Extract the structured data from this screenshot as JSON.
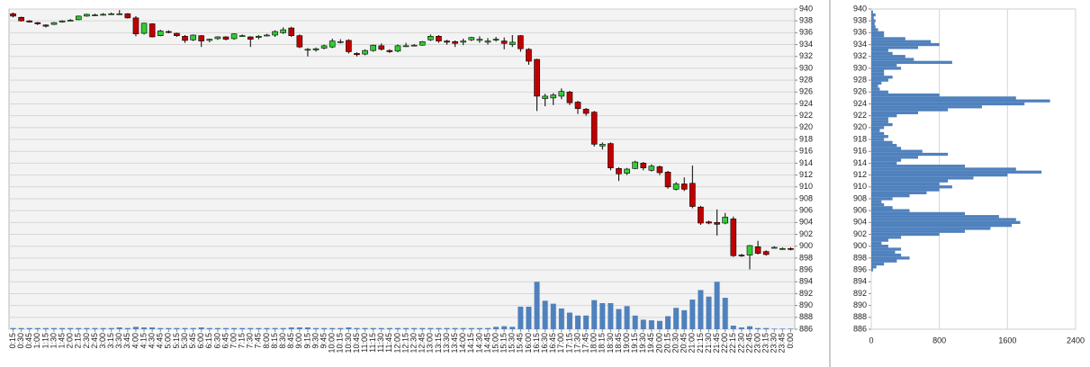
{
  "chart_data": [
    {
      "type": "candlestick",
      "categories": [
        "0:15",
        "0:30",
        "0:45",
        "1:00",
        "1:15",
        "1:30",
        "1:45",
        "2:00",
        "2:15",
        "2:30",
        "2:45",
        "3:00",
        "3:15",
        "3:30",
        "3:45",
        "4:00",
        "4:15",
        "4:30",
        "4:45",
        "5:00",
        "5:15",
        "5:30",
        "5:45",
        "6:00",
        "6:15",
        "6:30",
        "6:45",
        "7:00",
        "7:15",
        "7:30",
        "7:45",
        "8:00",
        "8:15",
        "8:30",
        "8:45",
        "9:00",
        "9:15",
        "9:30",
        "9:45",
        "10:00",
        "10:15",
        "10:30",
        "10:45",
        "11:00",
        "11:15",
        "11:30",
        "11:45",
        "12:00",
        "12:15",
        "12:30",
        "12:45",
        "13:00",
        "13:15",
        "13:30",
        "13:45",
        "14:00",
        "14:15",
        "14:30",
        "14:45",
        "15:00",
        "15:15",
        "15:30",
        "15:45",
        "16:00",
        "16:15",
        "16:30",
        "16:45",
        "17:00",
        "17:15",
        "17:30",
        "17:45",
        "18:00",
        "18:15",
        "18:30",
        "18:45",
        "19:00",
        "19:15",
        "19:30",
        "19:45",
        "20:00",
        "20:15",
        "20:30",
        "20:45",
        "21:00",
        "21:15",
        "21:30",
        "21:45",
        "22:00",
        "22:15",
        "22:30",
        "22:45",
        "23:00",
        "23:15",
        "23:30",
        "23:45",
        "0:00"
      ],
      "open": [
        939.2,
        938.6,
        938.0,
        937.7,
        937.3,
        937.4,
        937.8,
        938.1,
        938.2,
        938.8,
        939.0,
        939.0,
        939.1,
        939.2,
        939.2,
        938.5,
        935.9,
        937.5,
        935.5,
        936.2,
        935.9,
        935.4,
        934.8,
        935.5,
        934.7,
        935.0,
        935.3,
        935.0,
        935.5,
        935.3,
        935.2,
        935.6,
        935.6,
        936.0,
        936.8,
        935.5,
        933.2,
        933.1,
        933.4,
        933.6,
        934.4,
        934.7,
        932.5,
        932.4,
        933.0,
        933.8,
        933.0,
        932.9,
        933.8,
        933.9,
        933.9,
        934.8,
        935.4,
        934.6,
        934.5,
        934.4,
        934.8,
        934.7,
        934.4,
        934.9,
        934.6,
        934.0,
        935.5,
        933.2,
        931.5,
        924.9,
        925.0,
        925.3,
        926.0,
        924.3,
        923.1,
        922.6,
        916.9,
        917.3,
        913.1,
        912.3,
        913.1,
        914.0,
        912.8,
        913.4,
        912.5,
        909.6,
        910.5,
        910.6,
        906.6,
        904.1,
        904.0,
        903.9,
        904.6,
        898.5,
        898.5,
        899.9,
        899.1,
        899.7,
        899.6,
        899.6
      ],
      "high": [
        939.4,
        938.7,
        938.1,
        937.8,
        937.4,
        937.8,
        938.1,
        938.3,
        938.9,
        939.2,
        939.2,
        939.3,
        939.4,
        939.8,
        939.3,
        938.8,
        937.7,
        937.6,
        936.5,
        936.4,
        936.0,
        935.6,
        935.7,
        935.6,
        935.0,
        935.4,
        935.4,
        935.9,
        935.7,
        935.4,
        935.6,
        935.8,
        936.4,
        936.9,
        937.0,
        935.7,
        933.4,
        933.5,
        934.0,
        935.0,
        934.9,
        934.9,
        932.7,
        933.2,
        934.0,
        934.2,
        933.2,
        934.0,
        934.3,
        934.1,
        934.6,
        935.7,
        935.6,
        934.8,
        934.7,
        935.0,
        935.3,
        935.4,
        935.1,
        935.3,
        935.2,
        935.6,
        935.6,
        933.4,
        931.6,
        925.7,
        925.8,
        926.6,
        926.2,
        924.5,
        923.3,
        922.8,
        917.5,
        917.5,
        913.3,
        913.2,
        914.4,
        914.2,
        913.8,
        913.6,
        912.7,
        910.8,
        911.6,
        913.6,
        906.8,
        904.3,
        906.2,
        905.6,
        905.0,
        898.7,
        900.2,
        900.9,
        899.3,
        900.0,
        899.8,
        899.8
      ],
      "low": [
        938.6,
        937.9,
        937.7,
        937.3,
        936.9,
        937.3,
        937.7,
        938.0,
        938.1,
        938.7,
        938.8,
        938.9,
        939.0,
        939.0,
        938.4,
        935.4,
        935.7,
        935.2,
        935.4,
        935.9,
        935.3,
        934.3,
        934.6,
        933.6,
        934.4,
        934.8,
        934.7,
        934.8,
        935.3,
        933.6,
        934.9,
        935.4,
        935.3,
        935.8,
        935.3,
        933.4,
        932.0,
        932.8,
        933.2,
        933.4,
        934.2,
        932.5,
        932.0,
        932.2,
        932.8,
        933.0,
        932.6,
        932.7,
        933.6,
        933.7,
        933.8,
        934.6,
        934.3,
        934.0,
        933.6,
        933.9,
        934.6,
        934.3,
        934.0,
        934.5,
        933.2,
        933.6,
        932.8,
        930.6,
        922.8,
        923.6,
        923.8,
        924.8,
        923.8,
        922.3,
        922.0,
        916.8,
        916.3,
        912.8,
        911.0,
        912.0,
        913.0,
        912.8,
        912.6,
        912.0,
        909.7,
        909.4,
        909.3,
        906.4,
        903.6,
        903.7,
        901.8,
        903.7,
        898.2,
        898.2,
        896.1,
        898.6,
        898.4,
        899.6,
        899.5,
        899.3
      ],
      "close": [
        938.8,
        938.0,
        937.8,
        937.5,
        937.1,
        937.7,
        938.0,
        938.1,
        938.8,
        939.1,
        939.0,
        939.1,
        939.2,
        939.2,
        938.5,
        935.8,
        937.6,
        935.3,
        936.3,
        936.1,
        935.5,
        934.7,
        935.6,
        934.6,
        934.9,
        935.3,
        934.9,
        935.8,
        935.5,
        934.9,
        935.4,
        935.6,
        936.2,
        936.5,
        935.5,
        933.6,
        933.2,
        933.3,
        933.8,
        934.6,
        934.5,
        932.8,
        932.3,
        933.0,
        933.9,
        933.2,
        932.8,
        933.8,
        933.8,
        933.9,
        934.5,
        935.4,
        934.6,
        934.4,
        934.2,
        934.6,
        935.2,
        934.9,
        934.6,
        934.9,
        934.2,
        934.4,
        933.3,
        931.2,
        925.3,
        925.3,
        925.5,
        926.1,
        924.2,
        923.2,
        922.4,
        917.2,
        917.2,
        913.2,
        912.2,
        913.0,
        914.2,
        913.2,
        913.5,
        912.4,
        910.0,
        910.5,
        909.6,
        906.7,
        903.9,
        903.9,
        903.7,
        904.9,
        898.4,
        898.4,
        900.1,
        898.8,
        898.6,
        899.8,
        899.6,
        899.5
      ],
      "volume": [
        886.2,
        886.2,
        886.2,
        886.2,
        886.2,
        886.2,
        886.2,
        886.2,
        886.2,
        886.2,
        886.2,
        886.2,
        886.2,
        886.3,
        886.2,
        886.4,
        886.3,
        886.3,
        886.2,
        886.2,
        886.2,
        886.2,
        886.2,
        886.3,
        886.2,
        886.2,
        886.2,
        886.2,
        886.2,
        886.2,
        886.2,
        886.2,
        886.2,
        886.2,
        886.3,
        886.3,
        886.3,
        886.2,
        886.2,
        886.2,
        886.2,
        886.3,
        886.2,
        886.2,
        886.2,
        886.2,
        886.2,
        886.2,
        886.2,
        886.2,
        886.2,
        886.2,
        886.2,
        886.2,
        886.2,
        886.2,
        886.2,
        886.2,
        886.2,
        886.4,
        886.5,
        886.4,
        889.8,
        889.8,
        894.0,
        890.8,
        890.3,
        889.5,
        888.8,
        888.3,
        888.3,
        890.9,
        890.4,
        890.4,
        889.4,
        889.9,
        888.3,
        887.6,
        887.5,
        887.4,
        888.2,
        889.6,
        889.2,
        891.0,
        892.6,
        891.5,
        894.0,
        891.3,
        886.6,
        886.3,
        886.5,
        886.2,
        886.2,
        886.1,
        886.1,
        886.1
      ],
      "up_color": "#33cc33",
      "down_color": "#c00000",
      "volume_color": "#4f81bd",
      "ylim": [
        886,
        940
      ],
      "yticks": [
        886,
        888,
        890,
        892,
        894,
        896,
        898,
        900,
        902,
        904,
        906,
        908,
        910,
        912,
        914,
        916,
        918,
        920,
        922,
        924,
        926,
        928,
        930,
        932,
        934,
        936,
        938,
        940
      ],
      "grid": true
    },
    {
      "type": "barh",
      "y": [
        896,
        896.5,
        897,
        897.5,
        898,
        898.5,
        899,
        899.5,
        900,
        900.5,
        901,
        901.5,
        902,
        902.5,
        903,
        903.5,
        904,
        904.5,
        905,
        905.5,
        906,
        906.5,
        907,
        907.5,
        908,
        908.5,
        909,
        909.5,
        910,
        910.5,
        911,
        911.5,
        912,
        912.5,
        913,
        913.5,
        914,
        914.5,
        915,
        915.5,
        916,
        916.5,
        917,
        917.5,
        918,
        918.5,
        919,
        919.5,
        920,
        920.5,
        921,
        921.5,
        922,
        922.5,
        923,
        923.5,
        924,
        924.5,
        925,
        925.5,
        926,
        926.5,
        927,
        927.5,
        928,
        928.5,
        929,
        929.5,
        930,
        930.5,
        931,
        931.5,
        932,
        932.5,
        933,
        933.5,
        934,
        934.5,
        935,
        935.5,
        936,
        936.5,
        937,
        937.5,
        938,
        938.5,
        939,
        939.5
      ],
      "values": [
        20,
        60,
        150,
        300,
        450,
        350,
        280,
        350,
        200,
        120,
        200,
        350,
        800,
        1100,
        1400,
        1650,
        1750,
        1700,
        1500,
        1100,
        450,
        250,
        150,
        120,
        250,
        450,
        650,
        800,
        950,
        800,
        900,
        1200,
        1600,
        2000,
        1700,
        1100,
        300,
        350,
        550,
        900,
        600,
        350,
        300,
        250,
        150,
        200,
        150,
        100,
        150,
        250,
        200,
        200,
        300,
        550,
        900,
        1300,
        1800,
        2100,
        1700,
        800,
        200,
        100,
        80,
        120,
        200,
        250,
        150,
        150,
        350,
        300,
        950,
        500,
        400,
        250,
        200,
        550,
        800,
        700,
        400,
        150,
        150,
        80,
        50,
        40,
        50,
        30,
        50,
        20
      ],
      "color": "#4f81bd",
      "xlim": [
        0,
        2400
      ],
      "xticks": [
        0,
        800,
        1600,
        2400
      ],
      "ylim": [
        886,
        940
      ],
      "yticks": [
        886,
        888,
        890,
        892,
        894,
        896,
        898,
        900,
        902,
        904,
        906,
        908,
        910,
        912,
        914,
        916,
        918,
        920,
        922,
        924,
        926,
        928,
        930,
        932,
        934,
        936,
        938,
        940
      ],
      "grid": true
    }
  ]
}
